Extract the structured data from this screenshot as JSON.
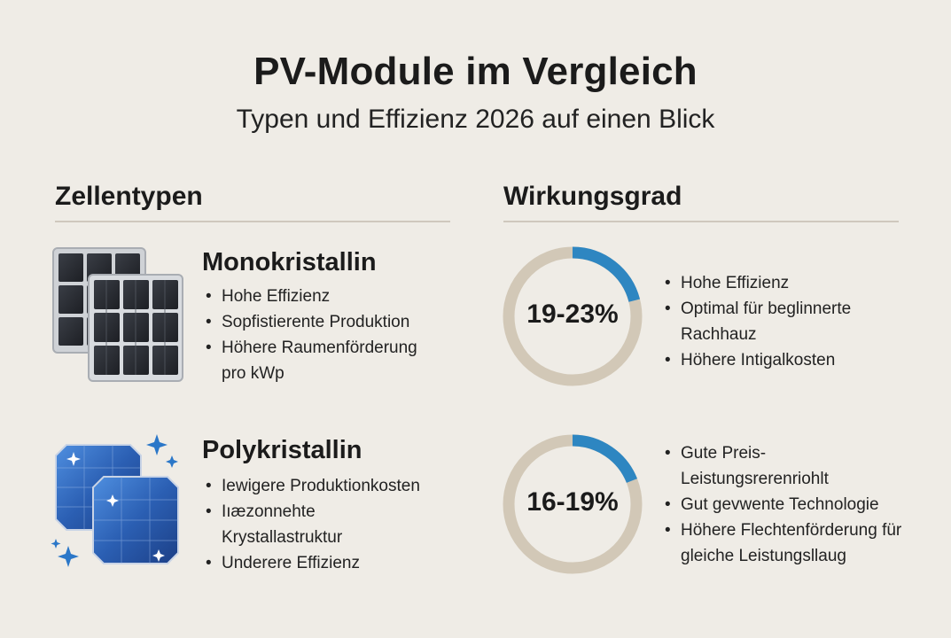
{
  "header": {
    "title": "PV-Module im Vergleich",
    "subtitle": "Typen und Effizienz 2026 auf einen Blick"
  },
  "sections": {
    "left_heading": "Zellentypen",
    "right_heading": "Wirkungsgrad"
  },
  "types": [
    {
      "name": "Monokristallin",
      "icon": "mono-solar-panel-icon",
      "bullets": [
        "Hohe Effizienz",
        "Sopfistierente Produktion",
        "Höhere Raumenförderung pro kWp"
      ],
      "efficiency_label": "19-23%",
      "efficiency_arc_fraction": 0.21,
      "efficiency_bullets": [
        "Hohe Effizienz",
        "Optimal für beglinnerte Rachhauz",
        "Höhere Intigalkosten"
      ]
    },
    {
      "name": "Polykristallin",
      "icon": "poly-solar-panel-icon",
      "bullets": [
        "Iewigere Produktionkosten",
        "Iıæzonnehte Krystallastruktur",
        "Underere Effizienz"
      ],
      "efficiency_label": "16-19%",
      "efficiency_arc_fraction": 0.19,
      "efficiency_bullets": [
        "Gute Preis-Leistungsrerenriohlt",
        "Gut gevwente Technologie",
        "Höhere Flechtenförderung für gleiche Leistungsllaug"
      ]
    }
  ],
  "colors": {
    "background": "#efece6",
    "ring_track": "#d2c8b7",
    "ring_accent": "#2e86c1",
    "mono_cell": "#2c2f36",
    "poly_cell": "#2f63b8",
    "sparkle": "#2b77c8"
  }
}
